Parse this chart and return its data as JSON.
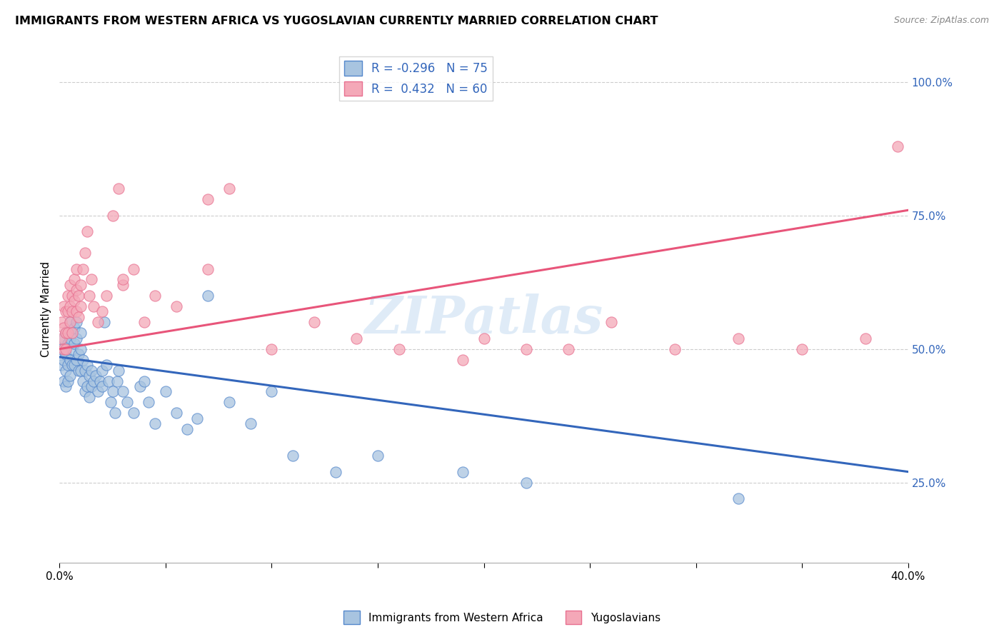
{
  "title": "IMMIGRANTS FROM WESTERN AFRICA VS YUGOSLAVIAN CURRENTLY MARRIED CORRELATION CHART",
  "source": "Source: ZipAtlas.com",
  "ylabel_label": "Currently Married",
  "ytick_values": [
    0.25,
    0.5,
    0.75,
    1.0
  ],
  "xmin": 0.0,
  "xmax": 0.4,
  "ymin": 0.1,
  "ymax": 1.05,
  "blue_R": -0.296,
  "blue_N": 75,
  "pink_R": 0.432,
  "pink_N": 60,
  "blue_color": "#a8c4e0",
  "pink_color": "#f4a8b8",
  "blue_line_color": "#3366BB",
  "pink_line_color": "#e8557a",
  "blue_edge_color": "#5588cc",
  "pink_edge_color": "#e87090",
  "legend_label_blue": "Immigrants from Western Africa",
  "legend_label_pink": "Yugoslavians",
  "watermark": "ZIPatlas",
  "blue_trend_x0": 0.0,
  "blue_trend_y0": 0.485,
  "blue_trend_x1": 0.4,
  "blue_trend_y1": 0.27,
  "pink_trend_x0": 0.0,
  "pink_trend_y0": 0.5,
  "pink_trend_x1": 0.4,
  "pink_trend_y1": 0.76,
  "blue_scatter_x": [
    0.001,
    0.001,
    0.002,
    0.002,
    0.002,
    0.003,
    0.003,
    0.003,
    0.003,
    0.004,
    0.004,
    0.004,
    0.005,
    0.005,
    0.005,
    0.005,
    0.006,
    0.006,
    0.006,
    0.007,
    0.007,
    0.007,
    0.008,
    0.008,
    0.008,
    0.009,
    0.009,
    0.01,
    0.01,
    0.01,
    0.011,
    0.011,
    0.012,
    0.012,
    0.013,
    0.013,
    0.014,
    0.014,
    0.015,
    0.015,
    0.016,
    0.017,
    0.018,
    0.019,
    0.02,
    0.02,
    0.021,
    0.022,
    0.023,
    0.024,
    0.025,
    0.026,
    0.027,
    0.028,
    0.03,
    0.032,
    0.035,
    0.038,
    0.04,
    0.042,
    0.045,
    0.05,
    0.055,
    0.06,
    0.065,
    0.07,
    0.08,
    0.09,
    0.1,
    0.11,
    0.13,
    0.15,
    0.19,
    0.22,
    0.32
  ],
  "blue_scatter_y": [
    0.5,
    0.47,
    0.52,
    0.48,
    0.44,
    0.53,
    0.49,
    0.46,
    0.43,
    0.51,
    0.47,
    0.44,
    0.55,
    0.52,
    0.48,
    0.45,
    0.53,
    0.5,
    0.47,
    0.54,
    0.51,
    0.47,
    0.55,
    0.52,
    0.48,
    0.49,
    0.46,
    0.53,
    0.5,
    0.46,
    0.48,
    0.44,
    0.46,
    0.42,
    0.47,
    0.43,
    0.45,
    0.41,
    0.46,
    0.43,
    0.44,
    0.45,
    0.42,
    0.44,
    0.46,
    0.43,
    0.55,
    0.47,
    0.44,
    0.4,
    0.42,
    0.38,
    0.44,
    0.46,
    0.42,
    0.4,
    0.38,
    0.43,
    0.44,
    0.4,
    0.36,
    0.42,
    0.38,
    0.35,
    0.37,
    0.6,
    0.4,
    0.36,
    0.42,
    0.3,
    0.27,
    0.3,
    0.27,
    0.25,
    0.22
  ],
  "pink_scatter_x": [
    0.001,
    0.001,
    0.002,
    0.002,
    0.002,
    0.003,
    0.003,
    0.003,
    0.004,
    0.004,
    0.004,
    0.005,
    0.005,
    0.005,
    0.006,
    0.006,
    0.006,
    0.007,
    0.007,
    0.008,
    0.008,
    0.008,
    0.009,
    0.009,
    0.01,
    0.01,
    0.011,
    0.012,
    0.013,
    0.014,
    0.015,
    0.016,
    0.018,
    0.02,
    0.022,
    0.025,
    0.028,
    0.03,
    0.035,
    0.04,
    0.045,
    0.055,
    0.07,
    0.08,
    0.1,
    0.12,
    0.14,
    0.16,
    0.2,
    0.22,
    0.24,
    0.26,
    0.29,
    0.32,
    0.35,
    0.38,
    0.395,
    0.03,
    0.07,
    0.19
  ],
  "pink_scatter_y": [
    0.55,
    0.52,
    0.58,
    0.54,
    0.5,
    0.57,
    0.53,
    0.5,
    0.6,
    0.57,
    0.53,
    0.62,
    0.58,
    0.55,
    0.6,
    0.57,
    0.53,
    0.63,
    0.59,
    0.65,
    0.61,
    0.57,
    0.6,
    0.56,
    0.62,
    0.58,
    0.65,
    0.68,
    0.72,
    0.6,
    0.63,
    0.58,
    0.55,
    0.57,
    0.6,
    0.75,
    0.8,
    0.62,
    0.65,
    0.55,
    0.6,
    0.58,
    0.65,
    0.8,
    0.5,
    0.55,
    0.52,
    0.5,
    0.52,
    0.5,
    0.5,
    0.55,
    0.5,
    0.52,
    0.5,
    0.52,
    0.88,
    0.63,
    0.78,
    0.48
  ]
}
